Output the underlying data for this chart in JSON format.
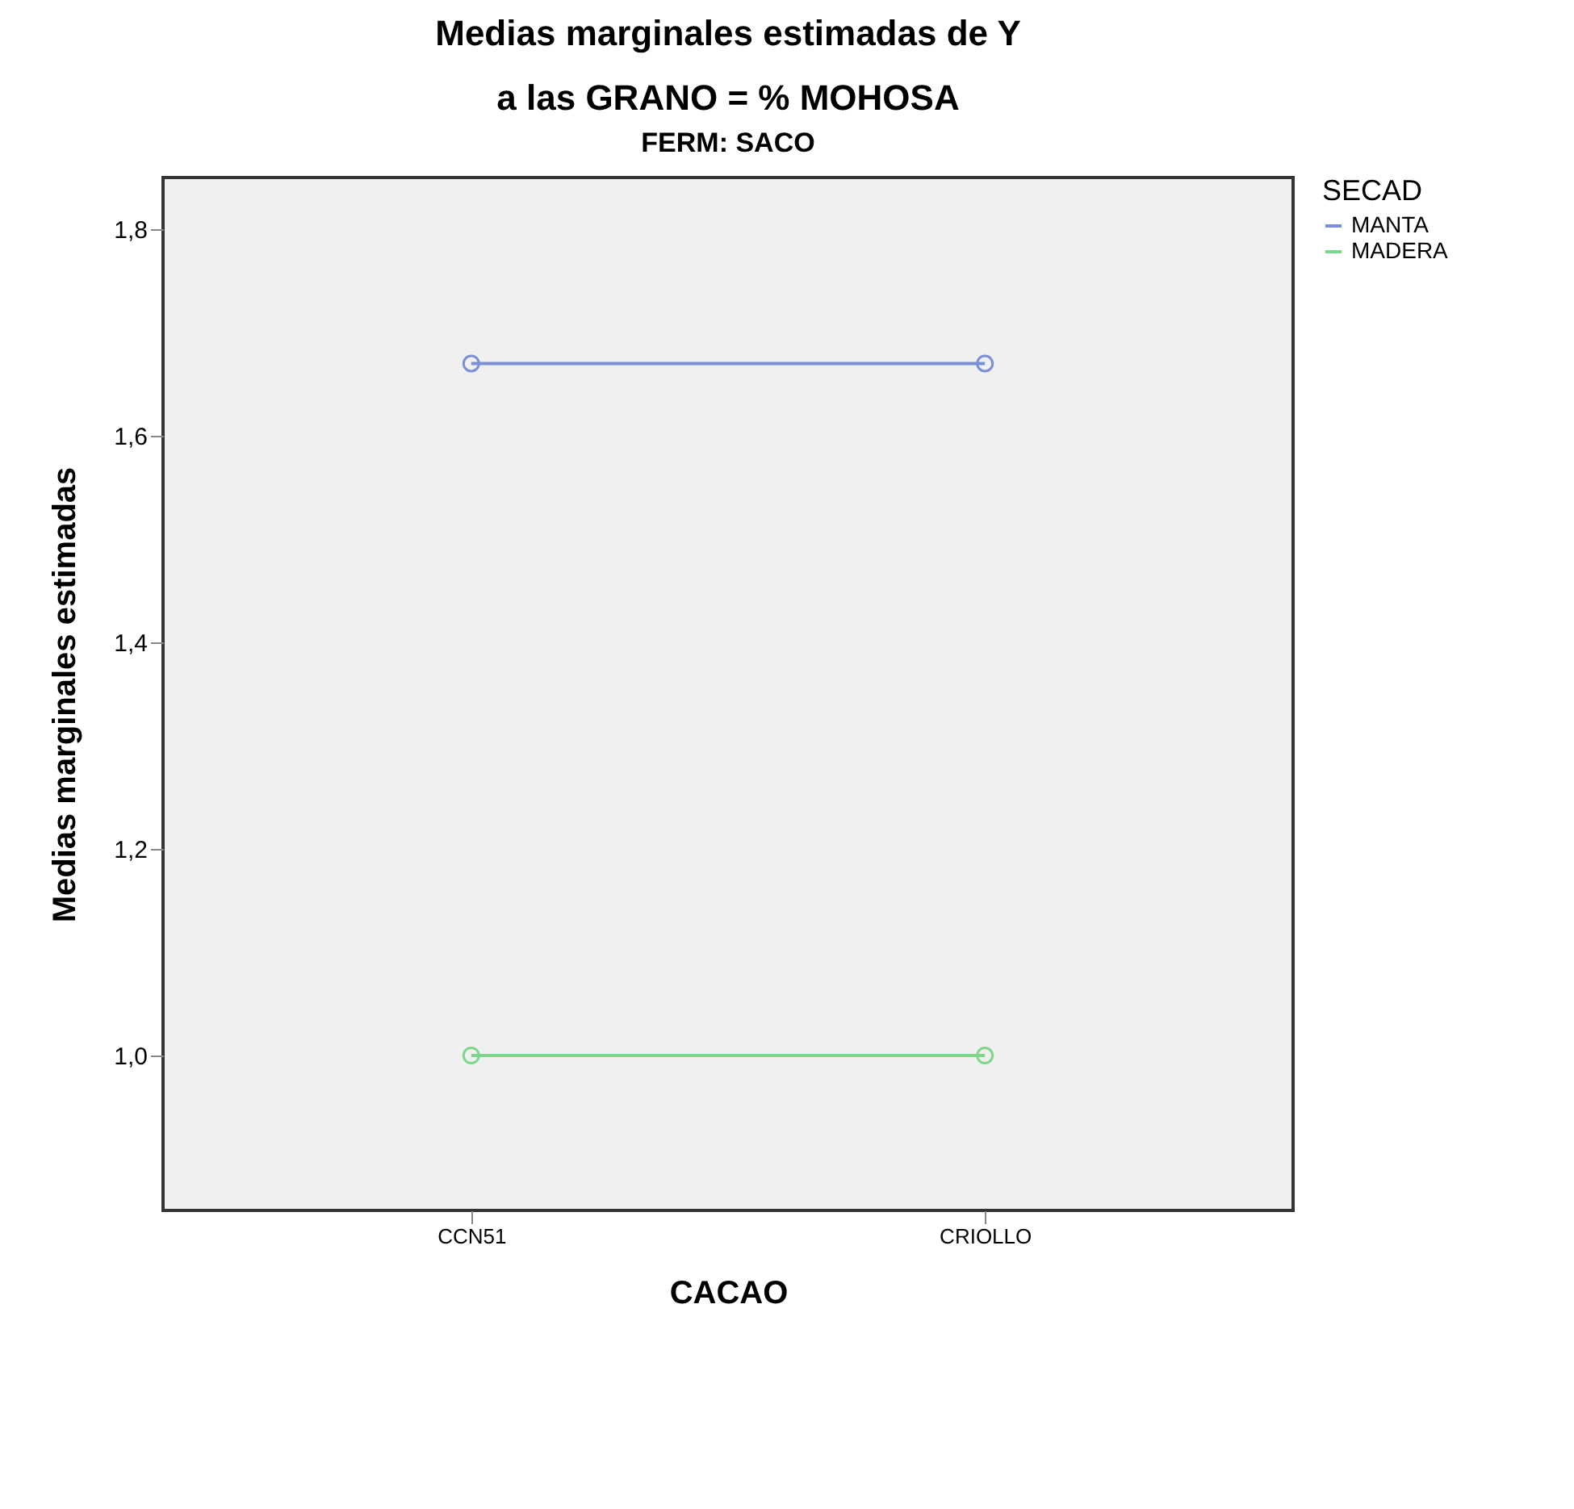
{
  "chart_data": {
    "type": "line",
    "title": "Medias marginales estimadas de Y\na las GRANO = % MOHOSA",
    "subtitle": "FERM: SACO",
    "xlabel": "CACAO",
    "ylabel": "Medias marginales estimadas",
    "legend_title": "SECAD",
    "categories": [
      "CCN51",
      "CRIOLLO"
    ],
    "series": [
      {
        "name": "MANTA",
        "color": "#7b8fd6",
        "values": [
          1.67,
          1.67
        ]
      },
      {
        "name": "MADERA",
        "color": "#7fd68a",
        "values": [
          1.0,
          1.0
        ]
      }
    ],
    "ylim": [
      0.85,
      1.85
    ],
    "yticks": [
      {
        "value": 1.0,
        "label": "1,0"
      },
      {
        "value": 1.2,
        "label": "1,2"
      },
      {
        "value": 1.4,
        "label": "1,4"
      },
      {
        "value": 1.6,
        "label": "1,6"
      },
      {
        "value": 1.8,
        "label": "1,8"
      }
    ],
    "grid": false,
    "legend": "top right",
    "marker": "circle",
    "line_style": "solid"
  }
}
